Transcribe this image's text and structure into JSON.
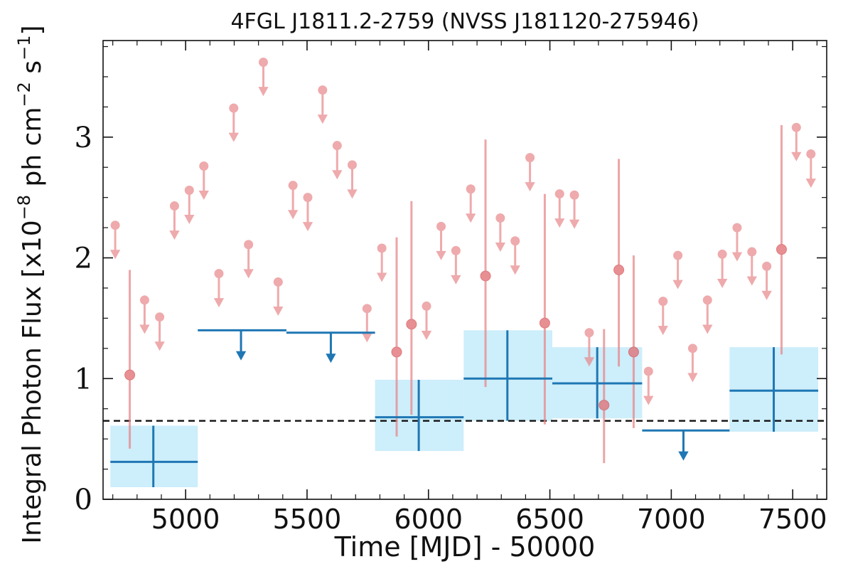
{
  "chart_data": {
    "type": "scatter",
    "title": "4FGL J1811.2-2759 (NVSS J181120-275946)",
    "xlabel": "Time [MJD] - 50000",
    "ylabel": "Integral Photon Flux [x10^-8 ph cm^-2 s^-1]",
    "ylabel_parts": {
      "prefix": "Integral Photon Flux [x10",
      "exp1": "−8",
      "mid": " ph cm",
      "exp2": "−2",
      "mid2": " s",
      "exp3": "−1",
      "suffix": "]"
    },
    "xlim": [
      4660,
      7640
    ],
    "ylim": [
      0,
      3.8
    ],
    "xticks": [
      5000,
      5500,
      6000,
      6500,
      7000,
      7500
    ],
    "yticks": [
      0,
      1,
      2,
      3
    ],
    "mean_flux_line": 0.65,
    "colors": {
      "short_bins": "#e8878a",
      "long_bins": "#1f77b4",
      "long_bins_band": "#cdeefb",
      "mean_line": "#111111"
    },
    "short_bins": {
      "upper_limits": [
        {
          "x": 4710,
          "y": 2.27
        },
        {
          "x": 4831,
          "y": 1.65
        },
        {
          "x": 4893,
          "y": 1.51
        },
        {
          "x": 4954,
          "y": 2.43
        },
        {
          "x": 5015,
          "y": 2.56
        },
        {
          "x": 5075,
          "y": 2.76
        },
        {
          "x": 5137,
          "y": 1.87
        },
        {
          "x": 5198,
          "y": 3.24
        },
        {
          "x": 5259,
          "y": 2.11
        },
        {
          "x": 5320,
          "y": 3.62
        },
        {
          "x": 5381,
          "y": 1.8
        },
        {
          "x": 5442,
          "y": 2.6
        },
        {
          "x": 5503,
          "y": 2.5
        },
        {
          "x": 5564,
          "y": 3.39
        },
        {
          "x": 5624,
          "y": 2.93
        },
        {
          "x": 5686,
          "y": 2.77
        },
        {
          "x": 5747,
          "y": 1.58
        },
        {
          "x": 5808,
          "y": 2.08
        },
        {
          "x": 5992,
          "y": 1.6
        },
        {
          "x": 6052,
          "y": 2.26
        },
        {
          "x": 6113,
          "y": 2.06
        },
        {
          "x": 6174,
          "y": 2.57
        },
        {
          "x": 6296,
          "y": 2.33
        },
        {
          "x": 6357,
          "y": 2.14
        },
        {
          "x": 6418,
          "y": 2.83
        },
        {
          "x": 6540,
          "y": 2.53
        },
        {
          "x": 6601,
          "y": 2.52
        },
        {
          "x": 6662,
          "y": 1.38
        },
        {
          "x": 6906,
          "y": 1.06
        },
        {
          "x": 6966,
          "y": 1.64
        },
        {
          "x": 7027,
          "y": 2.02
        },
        {
          "x": 7088,
          "y": 1.25
        },
        {
          "x": 7149,
          "y": 1.65
        },
        {
          "x": 7210,
          "y": 2.03
        },
        {
          "x": 7271,
          "y": 2.25
        },
        {
          "x": 7332,
          "y": 2.05
        },
        {
          "x": 7393,
          "y": 1.93
        },
        {
          "x": 7515,
          "y": 3.08
        },
        {
          "x": 7575,
          "y": 2.86
        }
      ],
      "detections": [
        {
          "x": 4770,
          "y": 1.03,
          "ylo": 0.42,
          "yhi": 1.9
        },
        {
          "x": 5869,
          "y": 1.22,
          "ylo": 0.52,
          "yhi": 2.17
        },
        {
          "x": 5930,
          "y": 1.45,
          "ylo": 0.7,
          "yhi": 2.47
        },
        {
          "x": 6235,
          "y": 1.85,
          "ylo": 0.93,
          "yhi": 2.98
        },
        {
          "x": 6479,
          "y": 1.46,
          "ylo": 0.62,
          "yhi": 2.53
        },
        {
          "x": 6723,
          "y": 0.78,
          "ylo": 0.3,
          "yhi": 1.41
        },
        {
          "x": 6784,
          "y": 1.9,
          "ylo": 1.1,
          "yhi": 2.82
        },
        {
          "x": 6845,
          "y": 1.22,
          "ylo": 0.59,
          "yhi": 2.02
        },
        {
          "x": 7454,
          "y": 2.07,
          "ylo": 1.2,
          "yhi": 3.1
        }
      ]
    },
    "long_bins": {
      "upper_limits": [
        {
          "x": 5228,
          "xlo": 5050,
          "xhi": 5415,
          "y": 1.4
        },
        {
          "x": 5598,
          "xlo": 5415,
          "xhi": 5780,
          "y": 1.38
        },
        {
          "x": 7050,
          "xlo": 6880,
          "xhi": 7240,
          "y": 0.57
        }
      ],
      "detections": [
        {
          "x": 4867,
          "xlo": 4690,
          "xhi": 5050,
          "y": 0.31,
          "ylo": 0.1,
          "yhi": 0.61
        },
        {
          "x": 5960,
          "xlo": 5780,
          "xhi": 6145,
          "y": 0.68,
          "ylo": 0.4,
          "yhi": 0.99
        },
        {
          "x": 6325,
          "xlo": 6145,
          "xhi": 6510,
          "y": 1.0,
          "ylo": 0.65,
          "yhi": 1.4
        },
        {
          "x": 6695,
          "xlo": 6510,
          "xhi": 6880,
          "y": 0.96,
          "ylo": 0.67,
          "yhi": 1.26
        },
        {
          "x": 7422,
          "xlo": 7240,
          "xhi": 7605,
          "y": 0.9,
          "ylo": 0.56,
          "yhi": 1.26
        }
      ]
    }
  }
}
